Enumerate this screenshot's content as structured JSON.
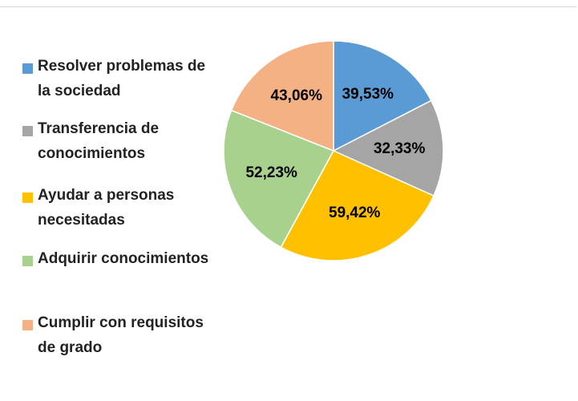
{
  "chart_data": {
    "type": "pie",
    "categories": [
      "Resolver problemas de la sociedad",
      "Transferencia de conocimientos",
      "Ayudar a personas necesitadas",
      "Adquirir conocimientos",
      "Cumplir con requisitos de grado"
    ],
    "values": [
      39.53,
      32.33,
      59.42,
      52.23,
      43.06
    ],
    "value_labels": [
      "39,53%",
      "32,33%",
      "59,42%",
      "52,23%",
      "43,06%"
    ],
    "colors": [
      "#5b9bd5",
      "#a5a5a5",
      "#ffc000",
      "#a9d18e",
      "#f4b183"
    ]
  }
}
